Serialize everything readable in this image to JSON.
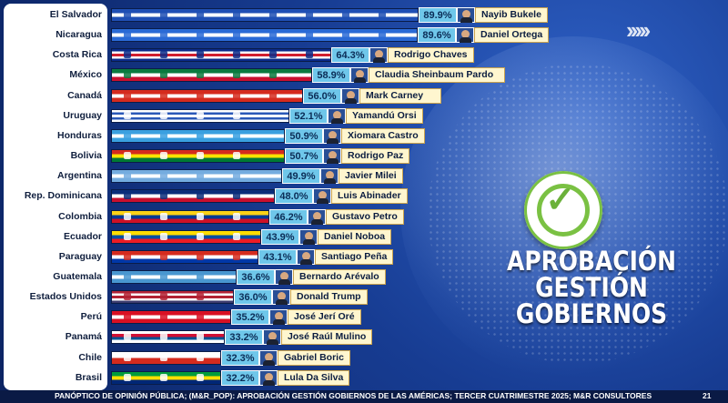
{
  "chart_data": {
    "type": "bar",
    "orientation": "horizontal",
    "title_lines": [
      "APROBACIÓN",
      "GESTIÓN",
      "GOBIERNOS"
    ],
    "xlim": [
      0,
      100
    ],
    "categories": [
      "El Salvador",
      "Nicaragua",
      "Costa Rica",
      "México",
      "Canadá",
      "Uruguay",
      "Honduras",
      "Bolivia",
      "Argentina",
      "Rep. Dominicana",
      "Colombia",
      "Ecuador",
      "Paraguay",
      "Guatemala",
      "Estados Unidos",
      "Perú",
      "Panamá",
      "Chile",
      "Brasil"
    ],
    "values": [
      89.9,
      89.6,
      64.3,
      58.9,
      56.0,
      52.1,
      50.9,
      50.7,
      49.9,
      48.0,
      46.2,
      43.9,
      43.1,
      36.6,
      36.0,
      35.2,
      33.2,
      32.3,
      32.2
    ],
    "value_labels": [
      "89.9%",
      "89.6%",
      "64.3%",
      "58.9%",
      "56.0%",
      "52.1%",
      "50.9%",
      "50.7%",
      "49.9%",
      "48.0%",
      "46.2%",
      "43.9%",
      "43.1%",
      "36.6%",
      "36.0%",
      "35.2%",
      "33.2%",
      "32.3%",
      "32.2%"
    ],
    "leaders": [
      "Nayib Bukele",
      "Daniel Ortega",
      "Rodrigo Chaves",
      "Claudia Sheinbaum Pardo",
      "Mark Carney",
      "Yamandú Orsi",
      "Xiomara Castro",
      "Rodrigo Paz",
      "Javier Milei",
      "Luis Abinader",
      "Gustavo Petro",
      "Daniel Noboa",
      "Santiago Peña",
      "Bernardo Arévalo",
      "Donald Trump",
      "José Jerí Oré",
      "José Raúl Mulino",
      "Gabriel Boric",
      "Lula Da Silva"
    ],
    "flag_colors": [
      [
        "#1f4fb4",
        "#ffffff",
        "#1f4fb4"
      ],
      [
        "#2a6ad6",
        "#ffffff",
        "#2a6ad6"
      ],
      [
        "#0b2b8a",
        "#ffffff",
        "#d01f2f",
        "#ffffff",
        "#0b2b8a"
      ],
      [
        "#0a7a3e",
        "#ffffff",
        "#c8102e"
      ],
      [
        "#d52b1e",
        "#ffffff",
        "#d52b1e"
      ],
      [
        "#ffffff",
        "#2a58b8",
        "#ffffff",
        "#2a58b8",
        "#ffffff"
      ],
      [
        "#3aa0e0",
        "#ffffff",
        "#3aa0e0"
      ],
      [
        "#d52b1e",
        "#f9e300",
        "#007934"
      ],
      [
        "#74acdf",
        "#ffffff",
        "#74acdf"
      ],
      [
        "#0a2d7a",
        "#ffffff",
        "#c8102e"
      ],
      [
        "#fcd116",
        "#003893",
        "#ce1126"
      ],
      [
        "#ffdd00",
        "#034ea2",
        "#ed1c24"
      ],
      [
        "#d52b1e",
        "#ffffff",
        "#0038a8"
      ],
      [
        "#4997d0",
        "#ffffff",
        "#4997d0"
      ],
      [
        "#b22234",
        "#ffffff",
        "#b22234",
        "#ffffff",
        "#3c3b6e"
      ],
      [
        "#d91023",
        "#ffffff",
        "#d91023"
      ],
      [
        "#ffffff",
        "#d21034",
        "#005293",
        "#ffffff"
      ],
      [
        "#ffffff",
        "#d52b1e"
      ],
      [
        "#009c3b",
        "#ffdf00",
        "#002776"
      ]
    ]
  },
  "colors": {
    "pct_label_bg": "#6fc7ea",
    "leader_label_bg": "#fff6cf",
    "badge_accent": "#7ac143"
  },
  "icons": {
    "chevrons": "double-chevron-right-icon",
    "badge": "check-circle-icon",
    "avatars": "leader-photo-icon"
  },
  "decor": {
    "chevrons": "›››››"
  },
  "footer": {
    "source": "PANÓPTICO DE OPINIÓN PÚBLICA; (M&R_POP): APROBACIÓN GESTIÓN GOBIERNOS DE LAS AMÉRICAS; TERCER CUATRIMESTRE 2025; M&R CONSULTORES",
    "page_number": "21"
  }
}
